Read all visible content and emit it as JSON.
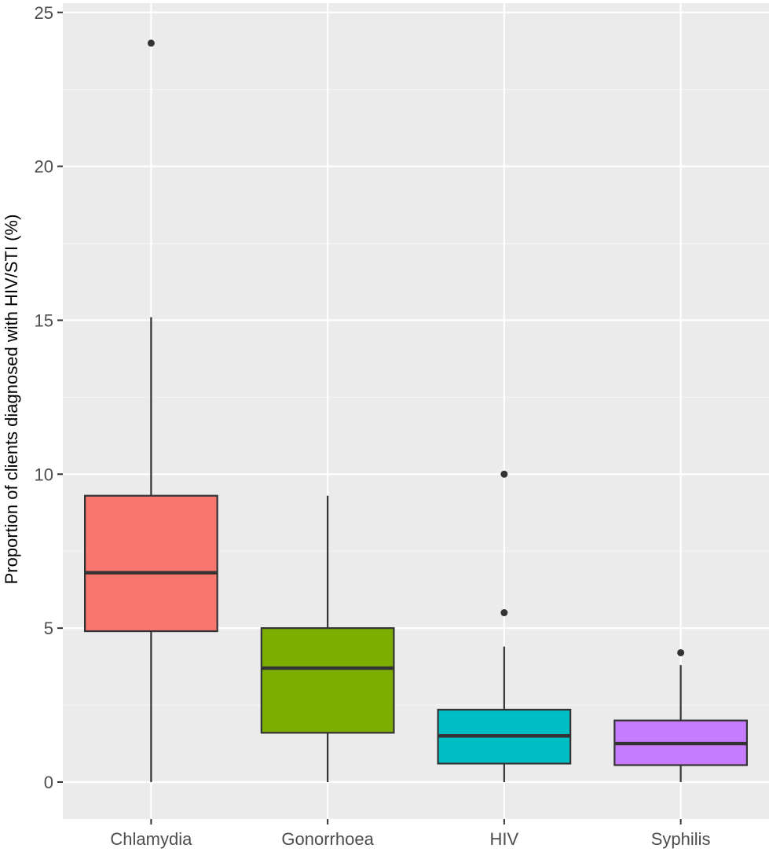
{
  "chart_data": {
    "type": "boxplot",
    "title": "",
    "xlabel": "",
    "ylabel": "Proportion of clients diagnosed with HIV/STI (%)",
    "ylim": [
      -1.2,
      25.3
    ],
    "yticks": [
      0,
      5,
      10,
      15,
      20,
      25
    ],
    "grid": true,
    "legend": "none",
    "categories": [
      "Chlamydia",
      "Gonorrhoea",
      "HIV",
      "Syphilis"
    ],
    "boxes": [
      {
        "category": "Chlamydia",
        "whisker_low": 0,
        "q1": 4.9,
        "median": 6.8,
        "q3": 9.3,
        "whisker_high": 15.1,
        "outliers": [
          24.0
        ],
        "color": "#F8766D"
      },
      {
        "category": "Gonorrhoea",
        "whisker_low": 0,
        "q1": 1.6,
        "median": 3.7,
        "q3": 5.0,
        "whisker_high": 9.3,
        "outliers": [],
        "color": "#7CAE00"
      },
      {
        "category": "HIV",
        "whisker_low": 0,
        "q1": 0.6,
        "median": 1.5,
        "q3": 2.35,
        "whisker_high": 4.4,
        "outliers": [
          5.5,
          10.0
        ],
        "color": "#00BFC4"
      },
      {
        "category": "Syphilis",
        "whisker_low": 0,
        "q1": 0.55,
        "median": 1.25,
        "q3": 2.0,
        "whisker_high": 3.8,
        "outliers": [
          4.2
        ],
        "color": "#C77CFF"
      }
    ]
  },
  "style": {
    "panel_bg": "#EBEBEB",
    "grid_major": "#FFFFFF",
    "grid_minor": "#F5F5F5",
    "box_line": "#333333",
    "tick_text": "#4D4D4D"
  }
}
